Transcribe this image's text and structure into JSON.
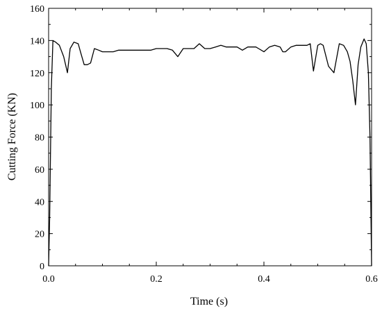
{
  "chart_data": {
    "type": "line",
    "title": "",
    "xlabel": "Time (s)",
    "ylabel": "Cutting Force (KN)",
    "xlim": [
      0,
      0.6
    ],
    "ylim": [
      0,
      160
    ],
    "grid": false,
    "x_ticks": [
      0.0,
      0.2,
      0.4,
      0.6
    ],
    "x_tick_labels": [
      "0.0",
      "0.2",
      "0.4",
      "0.6"
    ],
    "y_ticks": [
      0,
      20,
      40,
      60,
      80,
      100,
      120,
      140,
      160
    ],
    "y_tick_labels": [
      "0",
      "20",
      "40",
      "60",
      "80",
      "100",
      "120",
      "140",
      "160"
    ],
    "series": [
      {
        "color": "#000000",
        "x": [
          0,
          0.002,
          0.005,
          0.008,
          0.013,
          0.02,
          0.028,
          0.035,
          0.04,
          0.047,
          0.055,
          0.06,
          0.066,
          0.072,
          0.078,
          0.085,
          0.093,
          0.1,
          0.11,
          0.12,
          0.13,
          0.14,
          0.15,
          0.16,
          0.17,
          0.18,
          0.19,
          0.2,
          0.21,
          0.22,
          0.23,
          0.235,
          0.24,
          0.25,
          0.26,
          0.27,
          0.28,
          0.29,
          0.3,
          0.31,
          0.32,
          0.33,
          0.34,
          0.35,
          0.36,
          0.37,
          0.38,
          0.385,
          0.39,
          0.4,
          0.41,
          0.42,
          0.43,
          0.435,
          0.44,
          0.45,
          0.46,
          0.47,
          0.48,
          0.486,
          0.492,
          0.5,
          0.505,
          0.51,
          0.52,
          0.53,
          0.54,
          0.548,
          0.555,
          0.56,
          0.565,
          0.57,
          0.575,
          0.58,
          0.586,
          0.59,
          0.594,
          0.597,
          0.6
        ],
        "y": [
          0,
          30,
          110,
          140,
          139,
          137,
          130,
          120,
          135,
          139,
          138,
          132,
          125,
          125,
          126,
          135,
          134,
          133,
          133,
          133,
          134,
          134,
          134,
          134,
          134,
          134,
          134,
          135,
          135,
          135,
          134,
          132,
          130,
          135,
          135,
          135,
          138,
          135,
          135,
          136,
          137,
          136,
          136,
          136,
          134,
          136,
          136,
          136,
          135,
          133,
          136,
          137,
          136,
          133,
          133,
          136,
          137,
          137,
          137,
          138,
          121,
          137,
          138,
          137,
          124,
          120,
          138,
          137,
          133,
          127,
          115,
          100,
          125,
          136,
          141,
          138,
          120,
          80,
          0
        ]
      }
    ]
  }
}
